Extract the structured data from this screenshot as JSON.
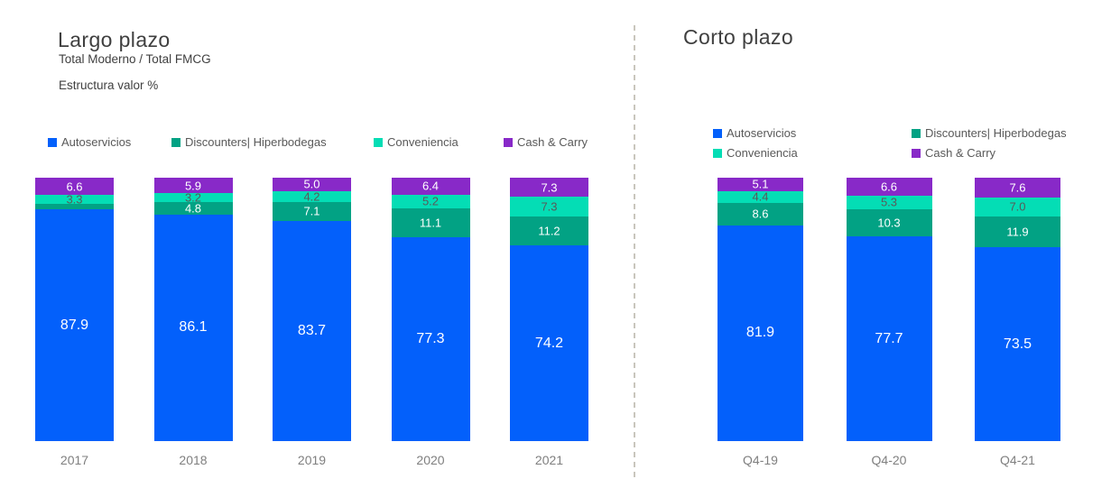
{
  "chart_data": [
    {
      "type": "bar",
      "variant": "stacked-100",
      "title": "Largo plazo",
      "subtitle": "Total Moderno / Total FMCG",
      "metric_label": "Estructura valor %",
      "categories": [
        "2017",
        "2018",
        "2019",
        "2020",
        "2021"
      ],
      "ylim": [
        0,
        100
      ],
      "grid": false,
      "legend_position": "top-row",
      "series": [
        {
          "name": "Autoservicios",
          "color": "#0360fb",
          "label_color": "#ffffff",
          "label_size": 16,
          "values": [
            87.9,
            86.1,
            83.7,
            77.3,
            74.2
          ]
        },
        {
          "name": "Discounters| Hiperbodegas",
          "color": "#02a284",
          "label_color": "#ffffff",
          "label_size": 13,
          "values": [
            2.2,
            4.8,
            7.1,
            11.1,
            11.2
          ],
          "show_labels": [
            false,
            true,
            true,
            true,
            true
          ]
        },
        {
          "name": "Conveniencia",
          "color": "#04ddb5",
          "label_color": "#595959",
          "label_size": 13,
          "values": [
            3.3,
            3.2,
            4.2,
            5.2,
            7.3
          ]
        },
        {
          "name": "Cash & Carry",
          "color": "#8829c8",
          "label_color": "#ffffff",
          "label_size": 13,
          "values": [
            6.6,
            5.9,
            5.0,
            6.4,
            7.3
          ]
        }
      ]
    },
    {
      "type": "bar",
      "variant": "stacked-100",
      "title": "Corto plazo",
      "categories": [
        "Q4-19",
        "Q4-20",
        "Q4-21"
      ],
      "ylim": [
        0,
        100
      ],
      "grid": false,
      "legend_position": "top-grid-2x2",
      "series": [
        {
          "name": "Autoservicios",
          "color": "#0360fb",
          "label_color": "#ffffff",
          "label_size": 16,
          "values": [
            81.9,
            77.7,
            73.5
          ]
        },
        {
          "name": "Discounters| Hiperbodegas",
          "color": "#02a284",
          "label_color": "#ffffff",
          "label_size": 13,
          "values": [
            8.6,
            10.3,
            11.9
          ]
        },
        {
          "name": "Conveniencia",
          "color": "#04ddb5",
          "label_color": "#595959",
          "label_size": 13,
          "values": [
            4.4,
            5.3,
            7.0
          ]
        },
        {
          "name": "Cash & Carry",
          "color": "#8829c8",
          "label_color": "#ffffff",
          "label_size": 13,
          "values": [
            5.1,
            6.6,
            7.6
          ]
        }
      ]
    }
  ]
}
